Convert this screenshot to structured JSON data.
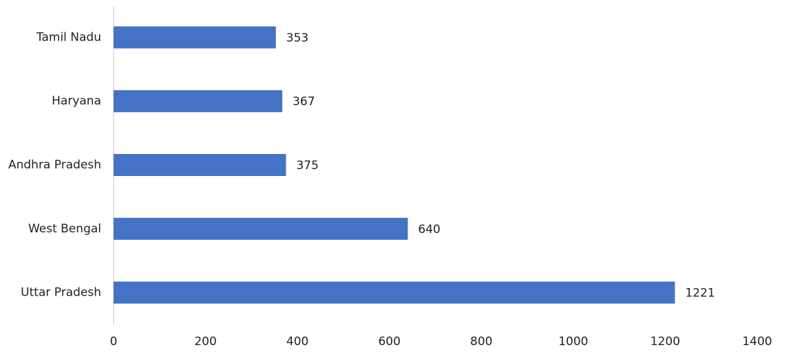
{
  "chart_data": {
    "type": "barh",
    "categories": [
      "Tamil Nadu",
      "Haryana",
      "Andhra Pradesh",
      "West Bengal",
      "Uttar Pradesh"
    ],
    "values": [
      353,
      367,
      375,
      640,
      1221
    ],
    "color": "#4472c4",
    "xlim": [
      0,
      1400
    ],
    "xticks": [
      0,
      200,
      400,
      600,
      800,
      1000,
      1200,
      1400
    ],
    "grid": false
  }
}
